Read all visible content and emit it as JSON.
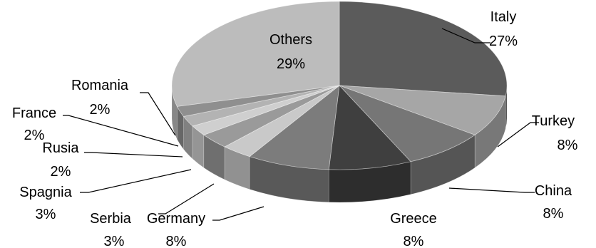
{
  "chart_data": {
    "type": "pie",
    "style": "3d",
    "title": "",
    "slices": [
      {
        "name": "Italy",
        "value": 27,
        "label": "27%",
        "color": "#5b5b5b"
      },
      {
        "name": "Turkey",
        "value": 8,
        "label": "8%",
        "color": "#a6a6a6"
      },
      {
        "name": "China",
        "value": 8,
        "label": "8%",
        "color": "#767676"
      },
      {
        "name": "Greece",
        "value": 8,
        "label": "8%",
        "color": "#3f3f3f"
      },
      {
        "name": "Germany",
        "value": 8,
        "label": "8%",
        "color": "#7c7c7c"
      },
      {
        "name": "Serbia",
        "value": 3,
        "label": "3%",
        "color": "#c9c9c9"
      },
      {
        "name": "Spagnia",
        "value": 3,
        "label": "3%",
        "color": "#9a9a9a"
      },
      {
        "name": "Rusia",
        "value": 2,
        "label": "2%",
        "color": "#cfcfcf"
      },
      {
        "name": "France",
        "value": 2,
        "label": "2%",
        "color": "#b3b3b3"
      },
      {
        "name": "Romania",
        "value": 2,
        "label": "2%",
        "color": "#8f8f8f"
      },
      {
        "name": "Others",
        "value": 29,
        "label": "29%",
        "color": "#bcbcbc"
      }
    ]
  }
}
